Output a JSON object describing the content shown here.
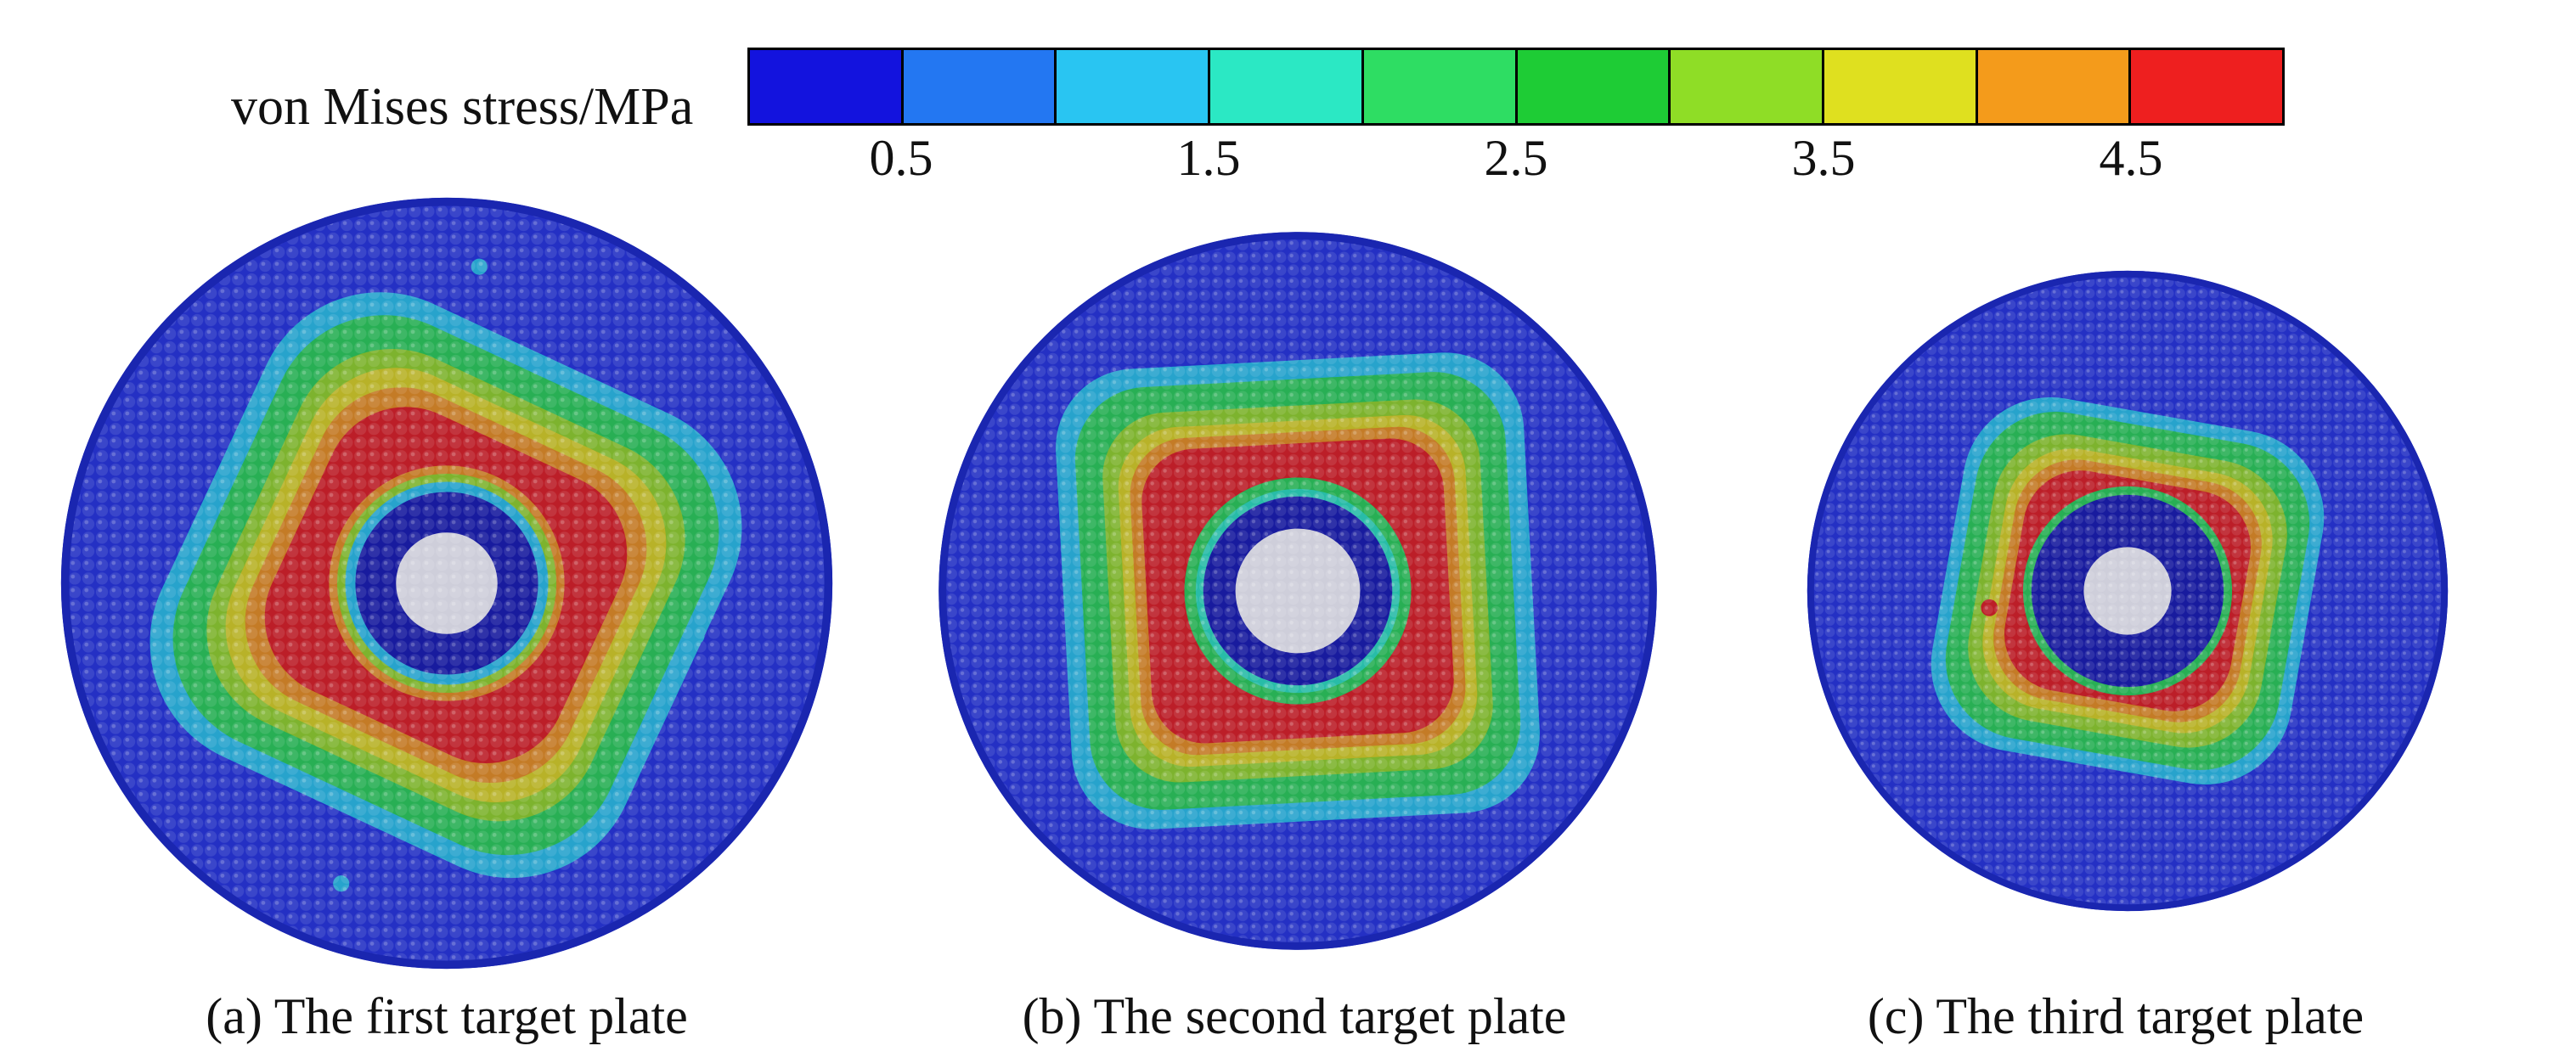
{
  "figure": {
    "colorbar": {
      "label": "von Mises stress/MPa",
      "unit": "MPa",
      "ticks": [
        "0.5",
        "1.5",
        "2.5",
        "3.5",
        "4.5"
      ],
      "tick_positions_pct": [
        10,
        30,
        50,
        70,
        90
      ],
      "segments": [
        "#1313DE",
        "#2377F2",
        "#29C5F2",
        "#2BE8C4",
        "#2EDD63",
        "#1ECC35",
        "#8FDD26",
        "#DFE01F",
        "#F49B1B",
        "#EE1F1F"
      ]
    },
    "palette": {
      "base": "#2A3AE3",
      "base_dark": "#1A26B0",
      "cyan": "#2EC9EE",
      "teal": "#2FE8C0",
      "green": "#2FD858",
      "ygreen": "#9ADD28",
      "yellow": "#E3DC20",
      "orange": "#F2971E",
      "red": "#E82320",
      "darkblue": "#1B1FB4",
      "hole": "#FFFFFF"
    },
    "plates": [
      {
        "caption": "(a) The first target plate"
      },
      {
        "caption": "(b) The second target plate"
      },
      {
        "caption": "(c) The third target plate"
      }
    ]
  }
}
